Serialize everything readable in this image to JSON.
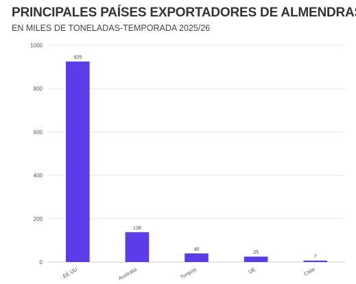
{
  "header": {
    "title": "PRINCIPALES PAÍSES EXPORTADORES DE ALMENDRAS",
    "subtitle": "EN MILES DE TONELADAS-TEMPORADA 2025/26"
  },
  "colors": {
    "bar": "#5b3ce8",
    "grid": "#e8e8e8",
    "axis": "#cccccc"
  },
  "chart_data": {
    "type": "bar",
    "title": "PRINCIPALES PAÍSES EXPORTADORES DE ALMENDRAS",
    "subtitle": "EN MILES DE TONELADAS-TEMPORADA 2025/26",
    "categories": [
      "EE.UU",
      "Australia",
      "Turquía",
      "UE",
      "Chile"
    ],
    "values": [
      925,
      138,
      40,
      25,
      7
    ],
    "data_labels": [
      "925",
      "138",
      "40",
      "25",
      "7"
    ],
    "yticks": [
      0,
      200,
      400,
      600,
      800,
      1000
    ],
    "ylim": [
      0,
      1000
    ],
    "xlabel": "",
    "ylabel": "",
    "grid": true
  }
}
